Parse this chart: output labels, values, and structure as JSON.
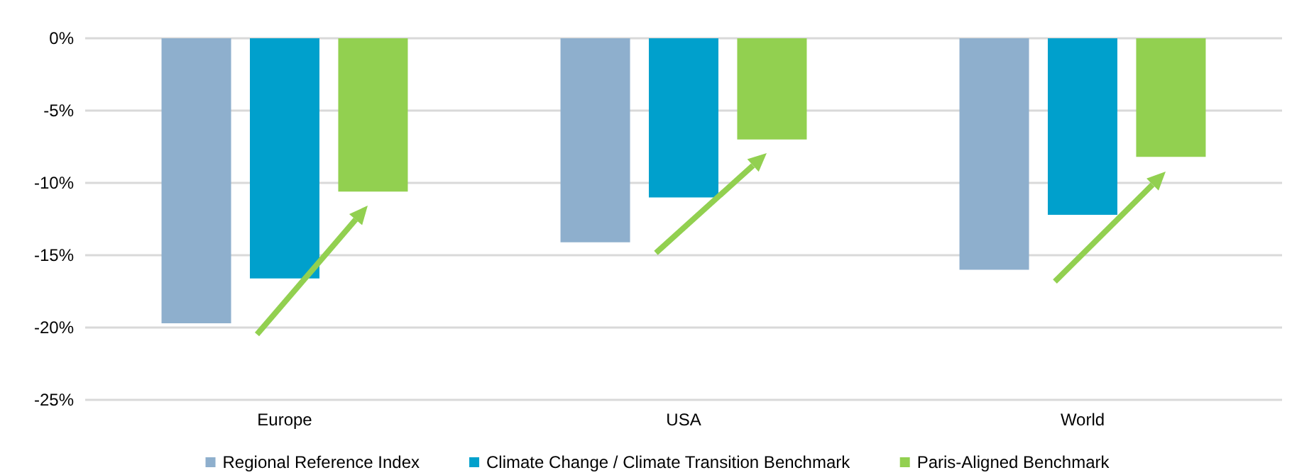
{
  "chart_data": {
    "type": "bar",
    "categories": [
      "Europe",
      "USA",
      "World"
    ],
    "series": [
      {
        "name": "Regional Reference Index",
        "color": "#8eafcd",
        "values": [
          -19.7,
          -14.1,
          -16.0
        ]
      },
      {
        "name": "Climate Change / Climate Transition Benchmark",
        "color": "#00a0cc",
        "values": [
          -16.6,
          -11.0,
          -12.2
        ]
      },
      {
        "name": "Paris-Aligned Benchmark",
        "color": "#92d050",
        "values": [
          -10.6,
          -7.0,
          -8.2
        ]
      }
    ],
    "ylim": [
      -25,
      0
    ],
    "yticks": [
      {
        "value": -25,
        "label": "-25%"
      },
      {
        "value": -20,
        "label": "-20%"
      },
      {
        "value": -15,
        "label": "-15%"
      },
      {
        "value": -10,
        "label": "-10%"
      },
      {
        "value": -5,
        "label": "-5%"
      },
      {
        "value": 0,
        "label": "0%"
      }
    ],
    "grid": "y",
    "legend": "bottom"
  }
}
